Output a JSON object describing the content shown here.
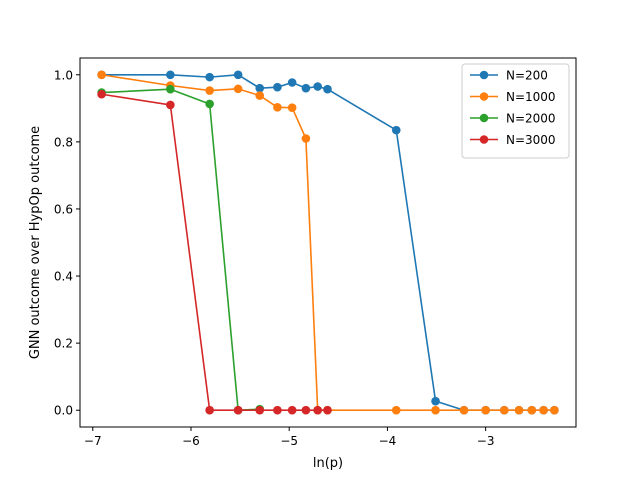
{
  "chart_data": {
    "type": "line",
    "title": "",
    "xlabel": "ln(p)",
    "ylabel": "GNN outcome over HypOp outcome",
    "xlim": [
      -7.13,
      -2.08
    ],
    "ylim": [
      -0.05,
      1.05
    ],
    "xticks": [
      -7,
      -6,
      -5,
      -4,
      -3
    ],
    "xtick_labels": [
      "−7",
      "−6",
      "−5",
      "−4",
      "−3"
    ],
    "yticks": [
      0.0,
      0.2,
      0.4,
      0.6,
      0.8,
      1.0
    ],
    "ytick_labels": [
      "0.0",
      "0.2",
      "0.4",
      "0.6",
      "0.8",
      "1.0"
    ],
    "grid": false,
    "legend_position": "top-right",
    "series": [
      {
        "name": "N=200",
        "color": "#1f77b4",
        "x": [
          -6.91,
          -6.21,
          -5.81,
          -5.52,
          -5.3,
          -5.12,
          -4.97,
          -4.83,
          -4.71,
          -4.61,
          -3.91,
          -3.51,
          -3.22,
          -3.0,
          -2.81,
          -2.66,
          -2.53,
          -2.41,
          -2.3
        ],
        "y": [
          1.0,
          1.0,
          0.993,
          1.0,
          0.96,
          0.963,
          0.977,
          0.96,
          0.965,
          0.957,
          0.835,
          0.027,
          0.0,
          0.0,
          0.0,
          0.0,
          0.0,
          0.0,
          0.0
        ]
      },
      {
        "name": "N=1000",
        "color": "#ff7f0e",
        "x": [
          -6.91,
          -6.21,
          -5.81,
          -5.52,
          -5.3,
          -5.12,
          -4.97,
          -4.83,
          -4.71,
          -4.61,
          -3.91,
          -3.51,
          -3.22,
          -3.0,
          -2.81,
          -2.66,
          -2.53,
          -2.41,
          -2.3
        ],
        "y": [
          1.0,
          0.968,
          0.953,
          0.958,
          0.938,
          0.903,
          0.902,
          0.81,
          0.0,
          0.0,
          0.0,
          0.0,
          0.0,
          0.0,
          0.0,
          0.0,
          0.0,
          0.0,
          0.0
        ]
      },
      {
        "name": "N=2000",
        "color": "#2ca02c",
        "x": [
          -6.91,
          -6.21,
          -5.81,
          -5.52,
          -5.3
        ],
        "y": [
          0.947,
          0.957,
          0.913,
          0.0,
          0.003
        ]
      },
      {
        "name": "N=3000",
        "color": "#d62728",
        "x": [
          -6.91,
          -6.21,
          -5.81,
          -5.52,
          -5.3,
          -5.12,
          -4.97,
          -4.83,
          -4.71,
          -4.61
        ],
        "y": [
          0.942,
          0.91,
          0.0,
          0.0,
          0.0,
          0.0,
          0.0,
          0.0,
          0.0,
          0.0
        ]
      }
    ]
  }
}
